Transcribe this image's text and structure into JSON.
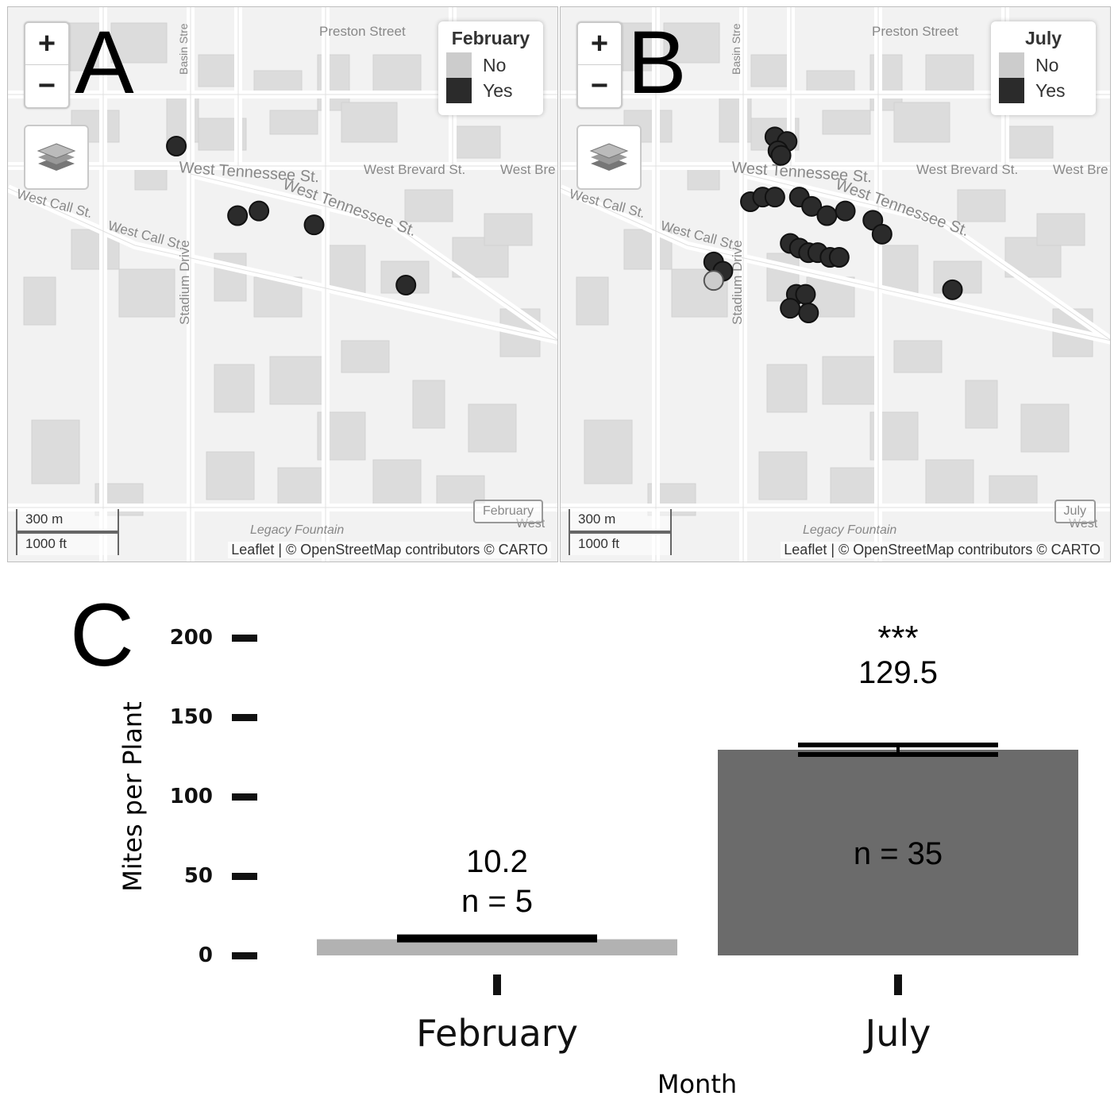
{
  "maps": [
    {
      "panel_letter": "A",
      "legend_title": "February",
      "legend_no": "No",
      "legend_yes": "Yes",
      "month_tag": "February",
      "scale_metric": "300 m",
      "scale_imperial": "1000 ft",
      "attribution": "Leaflet | © OpenStreetMap contributors © CARTO",
      "zoom_in": "+",
      "zoom_out": "−",
      "streets": [
        "Preston Street",
        "West Tennessee St.",
        "West Brevard St.",
        "West Bre",
        "West Tennessee St.",
        "West Call St.",
        "West Call St.",
        "Stadium Drive",
        "Basin Stre",
        "Legacy Fountain",
        "West"
      ],
      "points": [
        {
          "lat": 30.4445,
          "lon": -84.3005,
          "yes": true
        },
        {
          "lat": 30.443,
          "lon": -84.2985,
          "yes": true
        },
        {
          "lat": 30.4431,
          "lon": -84.2978,
          "yes": true
        },
        {
          "lat": 30.4428,
          "lon": -84.296,
          "yes": true
        },
        {
          "lat": 30.4415,
          "lon": -84.293,
          "yes": true
        }
      ]
    },
    {
      "panel_letter": "B",
      "legend_title": "July",
      "legend_no": "No",
      "legend_yes": "Yes",
      "month_tag": "July",
      "scale_metric": "300 m",
      "scale_imperial": "1000 ft",
      "attribution": "Leaflet | © OpenStreetMap contributors © CARTO",
      "zoom_in": "+",
      "zoom_out": "−",
      "streets": [
        "Preston Street",
        "West Tennessee St.",
        "West Brevard St.",
        "West Bre",
        "West Tennessee St.",
        "West Call St.",
        "West Call St.",
        "Stadium Drive",
        "Basin Stre",
        "Legacy Fountain",
        "West"
      ],
      "points": [
        {
          "lat": 30.4447,
          "lon": -84.299,
          "yes": true
        },
        {
          "lat": 30.4446,
          "lon": -84.2986,
          "yes": true
        },
        {
          "lat": 30.4444,
          "lon": -84.2989,
          "yes": true
        },
        {
          "lat": 30.4443,
          "lon": -84.2988,
          "yes": true
        },
        {
          "lat": 30.4433,
          "lon": -84.2998,
          "yes": true
        },
        {
          "lat": 30.4434,
          "lon": -84.2994,
          "yes": true
        },
        {
          "lat": 30.4434,
          "lon": -84.299,
          "yes": true
        },
        {
          "lat": 30.4434,
          "lon": -84.2982,
          "yes": true
        },
        {
          "lat": 30.4432,
          "lon": -84.2978,
          "yes": true
        },
        {
          "lat": 30.443,
          "lon": -84.2973,
          "yes": true
        },
        {
          "lat": 30.4431,
          "lon": -84.2967,
          "yes": true
        },
        {
          "lat": 30.4429,
          "lon": -84.2958,
          "yes": true
        },
        {
          "lat": 30.4426,
          "lon": -84.2955,
          "yes": true
        },
        {
          "lat": 30.4424,
          "lon": -84.2985,
          "yes": true
        },
        {
          "lat": 30.4423,
          "lon": -84.2982,
          "yes": true
        },
        {
          "lat": 30.4422,
          "lon": -84.2979,
          "yes": true
        },
        {
          "lat": 30.4422,
          "lon": -84.2976,
          "yes": true
        },
        {
          "lat": 30.4421,
          "lon": -84.2972,
          "yes": true
        },
        {
          "lat": 30.4421,
          "lon": -84.2969,
          "yes": true
        },
        {
          "lat": 30.442,
          "lon": -84.301,
          "yes": true
        },
        {
          "lat": 30.4418,
          "lon": -84.3007,
          "yes": true
        },
        {
          "lat": 30.4416,
          "lon": -84.301,
          "yes": false
        },
        {
          "lat": 30.4413,
          "lon": -84.2983,
          "yes": true
        },
        {
          "lat": 30.4413,
          "lon": -84.298,
          "yes": true
        },
        {
          "lat": 30.441,
          "lon": -84.2985,
          "yes": true
        },
        {
          "lat": 30.4409,
          "lon": -84.2979,
          "yes": true
        },
        {
          "lat": 30.4414,
          "lon": -84.2932,
          "yes": true
        }
      ]
    }
  ],
  "map_extent": {
    "lat_max": 30.4475,
    "lat_min": 30.4355,
    "lon_min": -84.306,
    "lon_max": -84.288
  },
  "colors": {
    "no": "#cccccc",
    "yes": "#2b2b2b",
    "bar_feb": "#b2b2b2",
    "bar_jul": "#6b6b6b"
  },
  "chart_data": {
    "type": "bar",
    "panel_letter": "C",
    "categories": [
      "February",
      "July"
    ],
    "values": [
      10.2,
      129.5
    ],
    "value_labels": [
      "10.2",
      "129.5"
    ],
    "n_labels": [
      "n = 5",
      "n = 35"
    ],
    "significance": [
      "",
      "***"
    ],
    "errors": [
      0,
      3
    ],
    "ylabel": "Mites per Plant",
    "xlabel": "Month",
    "ylim": [
      0,
      200
    ],
    "yticks": [
      0,
      50,
      100,
      150,
      200
    ]
  }
}
